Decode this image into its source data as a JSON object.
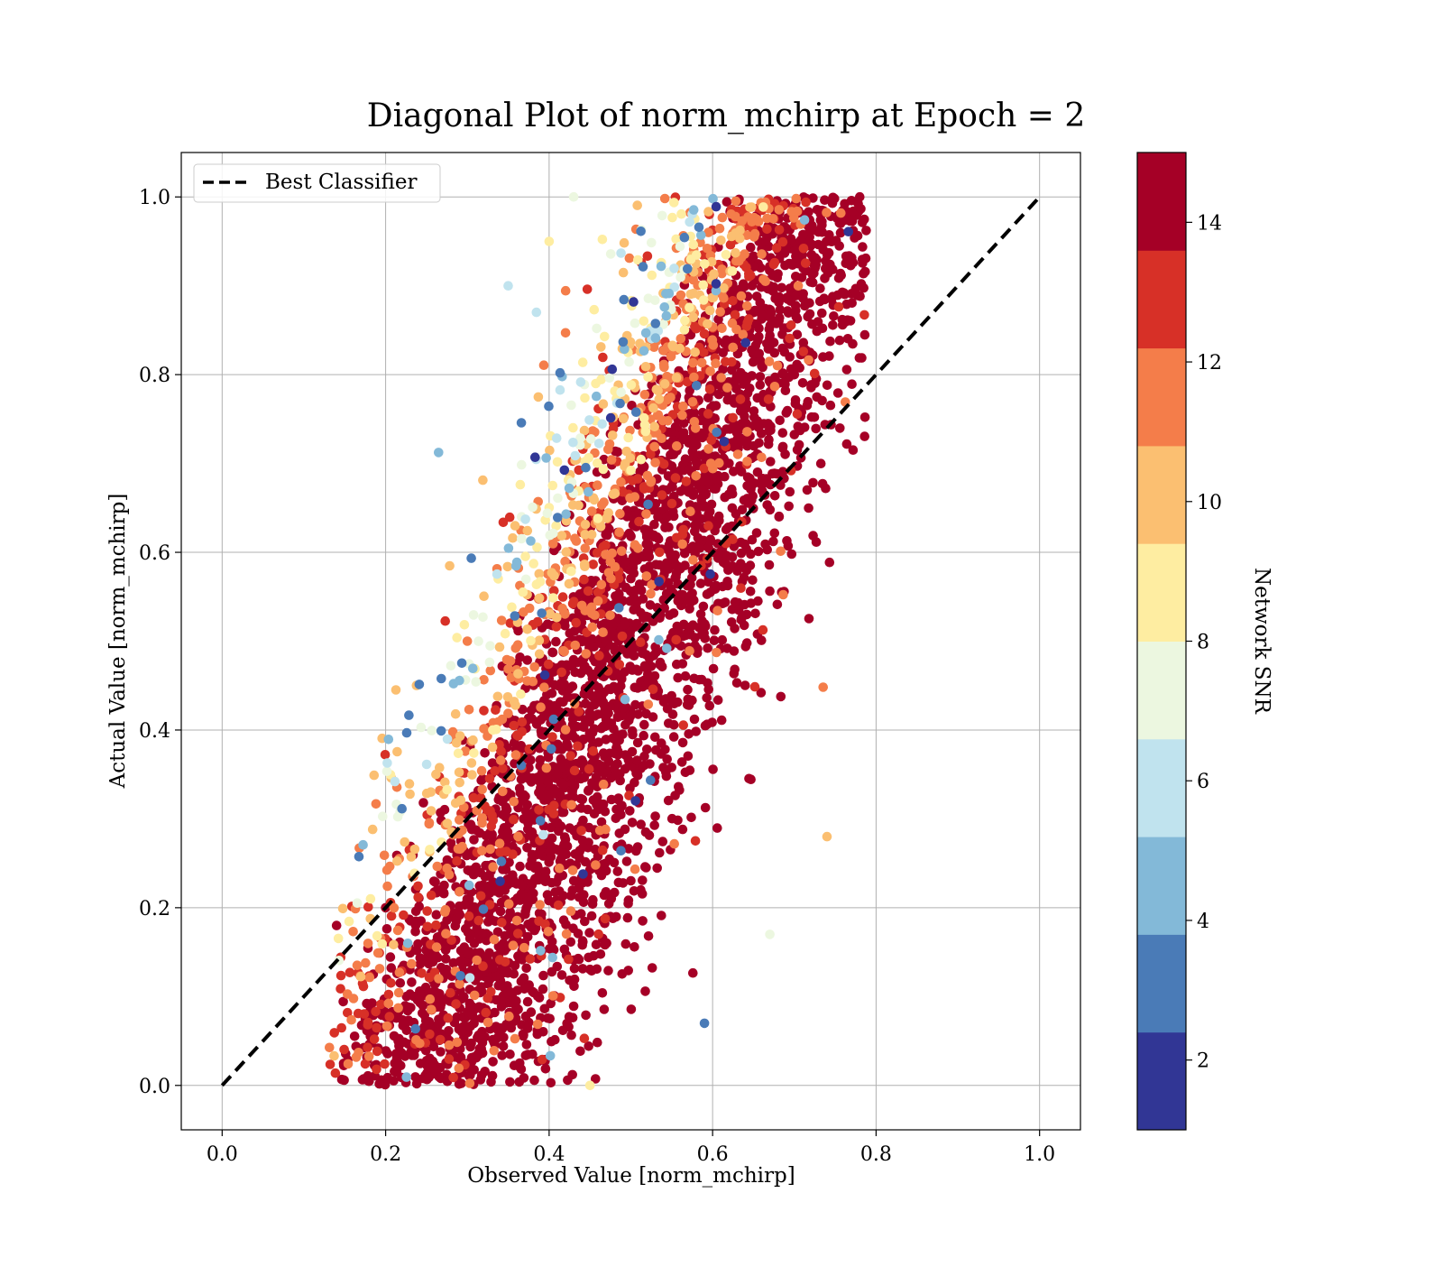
{
  "chart_data": {
    "type": "scatter",
    "title": "Diagonal Plot of norm_mchirp at Epoch = 2",
    "xlabel": "Observed Value [norm_mchirp]",
    "ylabel": "Actual Value [norm_mchirp]",
    "xlim": [
      -0.05,
      1.05
    ],
    "ylim": [
      -0.05,
      1.05
    ],
    "xticks": [
      "0.0",
      "0.2",
      "0.4",
      "0.6",
      "0.8",
      "1.0"
    ],
    "yticks": [
      "0.0",
      "0.2",
      "0.4",
      "0.6",
      "0.8",
      "1.0"
    ],
    "grid": true,
    "legend": {
      "placement": "upper-left",
      "entries": [
        {
          "label": "Best Classifier",
          "style": "dashed",
          "color": "#000000"
        }
      ]
    },
    "reference_line": {
      "label": "Best Classifier",
      "x": [
        0.0,
        1.0
      ],
      "y": [
        0.0,
        1.0
      ],
      "style": "dashed",
      "color": "#000000"
    },
    "colorbar": {
      "label": "Network SNR",
      "range": [
        1,
        15
      ],
      "ticks": [
        "2",
        "4",
        "6",
        "8",
        "10",
        "12",
        "14"
      ],
      "bins": [
        {
          "from": 1,
          "to": 2.4,
          "color": "#313695"
        },
        {
          "from": 2.4,
          "to": 3.8,
          "color": "#4a7bb7"
        },
        {
          "from": 3.8,
          "to": 5.2,
          "color": "#83b9d8"
        },
        {
          "from": 5.2,
          "to": 6.6,
          "color": "#c0e3ee"
        },
        {
          "from": 6.6,
          "to": 8.0,
          "color": "#ecf7e0"
        },
        {
          "from": 8.0,
          "to": 9.4,
          "color": "#feeda1"
        },
        {
          "from": 9.4,
          "to": 10.8,
          "color": "#fbbf71"
        },
        {
          "from": 10.8,
          "to": 12.2,
          "color": "#f47d4a"
        },
        {
          "from": 12.2,
          "to": 13.6,
          "color": "#d73027"
        },
        {
          "from": 13.6,
          "to": 15.0,
          "color": "#a50026"
        }
      ]
    },
    "point_cloud": {
      "description_of_trend": "dense band around observed = 0.25 + 0.45 * actual",
      "band_center": {
        "intercept": 0.25,
        "slope": 0.45
      },
      "x_range": [
        0.13,
        0.79
      ],
      "y_range": [
        0.0,
        1.0
      ],
      "snr_range": [
        1,
        15
      ],
      "low_snr_region": "upper-left edge of band"
    },
    "sample_points": [
      {
        "x": 0.14,
        "y": 0.18,
        "snr": 14
      },
      {
        "x": 0.2,
        "y": 0.2,
        "snr": 14
      },
      {
        "x": 0.3,
        "y": 0.5,
        "snr": 12
      },
      {
        "x": 0.35,
        "y": 0.9,
        "snr": 6
      },
      {
        "x": 0.4,
        "y": 0.95,
        "snr": 8
      },
      {
        "x": 0.43,
        "y": 1.0,
        "snr": 7
      },
      {
        "x": 0.45,
        "y": 0.0,
        "snr": 9
      },
      {
        "x": 0.5,
        "y": 0.5,
        "snr": 14
      },
      {
        "x": 0.6,
        "y": 0.6,
        "snr": 14
      },
      {
        "x": 0.7,
        "y": 0.8,
        "snr": 14
      },
      {
        "x": 0.74,
        "y": 0.28,
        "snr": 10
      },
      {
        "x": 0.78,
        "y": 1.0,
        "snr": 14
      },
      {
        "x": 0.59,
        "y": 0.07,
        "snr": 3
      },
      {
        "x": 0.67,
        "y": 0.17,
        "snr": 7
      }
    ]
  }
}
